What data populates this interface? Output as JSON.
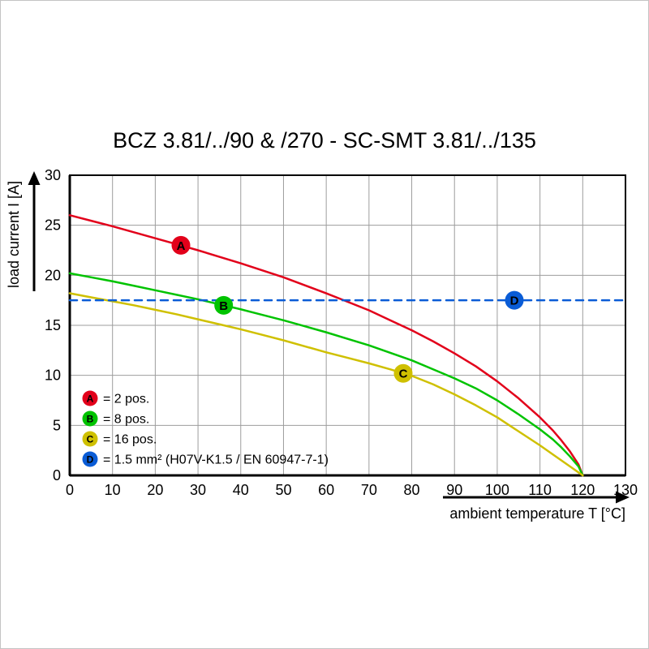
{
  "chart_data": {
    "type": "line",
    "title": "BCZ 3.81/../90 & /270 - SC-SMT 3.81/../135",
    "xlabel": "ambient temperature T [°C]",
    "ylabel": "load current I [A]",
    "xlim": [
      0,
      130
    ],
    "ylim": [
      0,
      30
    ],
    "xticks": [
      0,
      10,
      20,
      30,
      40,
      50,
      60,
      70,
      80,
      90,
      100,
      110,
      120,
      130
    ],
    "yticks": [
      0,
      5,
      10,
      15,
      20,
      25,
      30
    ],
    "grid": true,
    "legend_position": "bottom-left-inside",
    "colors": {
      "red": "#e2001a",
      "green": "#00c300",
      "yellow": "#cfc000",
      "blue": "#0a5cd6",
      "grid": "#9d9d9d",
      "axis": "#000000"
    },
    "series": [
      {
        "id": "A",
        "label": "= 2 pos.",
        "color": "#e2001a",
        "style": "solid",
        "points": [
          [
            0,
            26
          ],
          [
            5,
            25.45
          ],
          [
            10,
            24.9
          ],
          [
            15,
            24.3
          ],
          [
            20,
            23.7
          ],
          [
            25,
            23.1
          ],
          [
            30,
            22.5
          ],
          [
            35,
            21.85
          ],
          [
            40,
            21.2
          ],
          [
            45,
            20.5
          ],
          [
            50,
            19.8
          ],
          [
            55,
            19.0
          ],
          [
            60,
            18.2
          ],
          [
            65,
            17.35
          ],
          [
            70,
            16.5
          ],
          [
            75,
            15.5
          ],
          [
            80,
            14.5
          ],
          [
            85,
            13.4
          ],
          [
            90,
            12.2
          ],
          [
            95,
            10.9
          ],
          [
            100,
            9.4
          ],
          [
            105,
            7.7
          ],
          [
            110,
            5.8
          ],
          [
            113,
            4.5
          ],
          [
            115,
            3.5
          ],
          [
            117,
            2.4
          ],
          [
            119,
            1.1
          ],
          [
            120,
            0
          ]
        ]
      },
      {
        "id": "B",
        "label": "= 8 pos.",
        "color": "#00c300",
        "style": "solid",
        "points": [
          [
            0,
            20.2
          ],
          [
            5,
            19.8
          ],
          [
            10,
            19.4
          ],
          [
            15,
            18.95
          ],
          [
            20,
            18.5
          ],
          [
            25,
            18.05
          ],
          [
            30,
            17.6
          ],
          [
            35,
            17.1
          ],
          [
            40,
            16.6
          ],
          [
            45,
            16.05
          ],
          [
            50,
            15.5
          ],
          [
            55,
            14.9
          ],
          [
            60,
            14.3
          ],
          [
            65,
            13.65
          ],
          [
            70,
            13.0
          ],
          [
            75,
            12.25
          ],
          [
            80,
            11.5
          ],
          [
            85,
            10.6
          ],
          [
            90,
            9.7
          ],
          [
            95,
            8.7
          ],
          [
            100,
            7.5
          ],
          [
            105,
            6.1
          ],
          [
            110,
            4.6
          ],
          [
            113,
            3.6
          ],
          [
            115,
            2.8
          ],
          [
            117,
            1.9
          ],
          [
            119,
            0.9
          ],
          [
            120,
            0
          ]
        ]
      },
      {
        "id": "C",
        "label": "= 16 pos.",
        "color": "#cfc000",
        "style": "solid",
        "points": [
          [
            0,
            18.2
          ],
          [
            5,
            17.8
          ],
          [
            10,
            17.4
          ],
          [
            15,
            17.0
          ],
          [
            20,
            16.55
          ],
          [
            25,
            16.1
          ],
          [
            30,
            15.6
          ],
          [
            35,
            15.1
          ],
          [
            40,
            14.6
          ],
          [
            45,
            14.05
          ],
          [
            50,
            13.5
          ],
          [
            55,
            12.9
          ],
          [
            60,
            12.3
          ],
          [
            65,
            11.75
          ],
          [
            70,
            11.2
          ],
          [
            75,
            10.6
          ],
          [
            80,
            9.95
          ],
          [
            85,
            9.1
          ],
          [
            90,
            8.1
          ],
          [
            95,
            7.0
          ],
          [
            100,
            5.8
          ],
          [
            105,
            4.4
          ],
          [
            110,
            3.0
          ],
          [
            113,
            2.1
          ],
          [
            115,
            1.5
          ],
          [
            117,
            0.9
          ],
          [
            119,
            0.3
          ],
          [
            120,
            0
          ]
        ]
      },
      {
        "id": "D",
        "label": "= 1.5 mm² (H07V-K1.5 / EN 60947-7-1)",
        "color": "#0a5cd6",
        "style": "dashed",
        "points": [
          [
            0,
            17.5
          ],
          [
            130,
            17.5
          ]
        ]
      }
    ],
    "markers": [
      {
        "id": "A",
        "x": 26,
        "y": 23.0,
        "color": "#e2001a"
      },
      {
        "id": "B",
        "x": 36,
        "y": 17.0,
        "color": "#00c300"
      },
      {
        "id": "C",
        "x": 78,
        "y": 10.2,
        "color": "#cfc000"
      },
      {
        "id": "D",
        "x": 104,
        "y": 17.5,
        "color": "#0a5cd6"
      }
    ]
  }
}
